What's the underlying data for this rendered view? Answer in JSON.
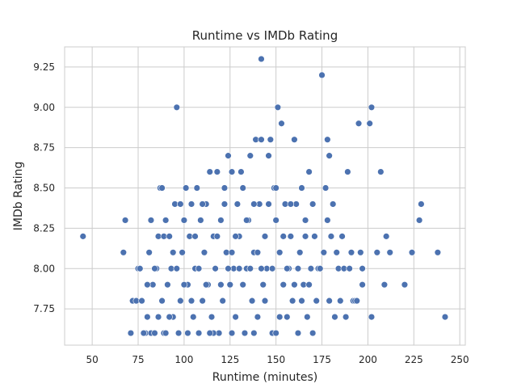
{
  "chart_data": {
    "type": "scatter",
    "title": "Runtime vs IMDb Rating",
    "xlabel": "Runtime (minutes)",
    "ylabel": "IMDb Rating",
    "xlim": [
      35,
      253
    ],
    "ylim": [
      7.525,
      9.375
    ],
    "xticks": [
      50,
      75,
      100,
      125,
      150,
      175,
      200,
      225,
      250
    ],
    "xtick_labels": [
      "50",
      "75",
      "100",
      "125",
      "150",
      "175",
      "200",
      "225",
      "250"
    ],
    "yticks": [
      7.75,
      8.0,
      8.25,
      8.5,
      8.75,
      9.0,
      9.25
    ],
    "ytick_labels": [
      "7.75",
      "8.00",
      "8.25",
      "8.50",
      "8.75",
      "9.00",
      "9.25"
    ],
    "grid": true,
    "color": "#4c72b0",
    "points": [
      [
        45,
        8.2
      ],
      [
        67,
        8.1
      ],
      [
        68,
        8.3
      ],
      [
        71,
        7.6
      ],
      [
        72,
        7.8
      ],
      [
        74,
        7.8
      ],
      [
        75,
        8.0
      ],
      [
        76,
        8.0
      ],
      [
        77,
        7.8
      ],
      [
        79,
        7.6
      ],
      [
        80,
        7.7
      ],
      [
        81,
        8.1
      ],
      [
        82,
        8.3
      ],
      [
        82,
        7.6
      ],
      [
        83,
        7.9
      ],
      [
        84,
        7.6
      ],
      [
        85,
        8.0
      ],
      [
        86,
        7.7
      ],
      [
        86,
        8.2
      ],
      [
        87,
        8.5
      ],
      [
        88,
        8.5
      ],
      [
        89,
        8.2
      ],
      [
        89,
        7.6
      ],
      [
        90,
        8.3
      ],
      [
        91,
        7.9
      ],
      [
        92,
        8.2
      ],
      [
        93,
        8.0
      ],
      [
        94,
        7.7
      ],
      [
        95,
        8.4
      ],
      [
        96,
        9.0
      ],
      [
        97,
        7.6
      ],
      [
        98,
        7.8
      ],
      [
        99,
        8.1
      ],
      [
        100,
        8.3
      ],
      [
        101,
        8.5
      ],
      [
        102,
        7.9
      ],
      [
        103,
        8.2
      ],
      [
        104,
        8.4
      ],
      [
        105,
        7.7
      ],
      [
        106,
        8.0
      ],
      [
        107,
        8.5
      ],
      [
        108,
        7.6
      ],
      [
        109,
        8.3
      ],
      [
        110,
        7.8
      ],
      [
        111,
        8.1
      ],
      [
        112,
        8.4
      ],
      [
        113,
        7.9
      ],
      [
        114,
        8.6
      ],
      [
        115,
        7.7
      ],
      [
        116,
        8.2
      ],
      [
        117,
        8.0
      ],
      [
        118,
        8.6
      ],
      [
        119,
        7.6
      ],
      [
        120,
        8.3
      ],
      [
        121,
        7.8
      ],
      [
        122,
        8.5
      ],
      [
        123,
        8.1
      ],
      [
        124,
        8.7
      ],
      [
        125,
        7.9
      ],
      [
        126,
        8.6
      ],
      [
        127,
        8.0
      ],
      [
        128,
        7.7
      ],
      [
        129,
        8.4
      ],
      [
        130,
        8.2
      ],
      [
        131,
        8.6
      ],
      [
        132,
        8.5
      ],
      [
        133,
        7.6
      ],
      [
        134,
        8.0
      ],
      [
        135,
        8.3
      ],
      [
        136,
        8.7
      ],
      [
        137,
        7.8
      ],
      [
        138,
        8.1
      ],
      [
        139,
        8.8
      ],
      [
        140,
        7.7
      ],
      [
        141,
        8.4
      ],
      [
        142,
        9.3
      ],
      [
        142,
        8.8
      ],
      [
        143,
        7.9
      ],
      [
        144,
        8.2
      ],
      [
        145,
        8.0
      ],
      [
        146,
        8.7
      ],
      [
        147,
        8.8
      ],
      [
        148,
        7.6
      ],
      [
        149,
        8.5
      ],
      [
        150,
        8.3
      ],
      [
        151,
        9.0
      ],
      [
        152,
        8.1
      ],
      [
        153,
        8.9
      ],
      [
        154,
        7.9
      ],
      [
        155,
        8.4
      ],
      [
        156,
        7.7
      ],
      [
        157,
        8.0
      ],
      [
        158,
        8.2
      ],
      [
        159,
        7.8
      ],
      [
        160,
        8.8
      ],
      [
        161,
        8.4
      ],
      [
        162,
        7.6
      ],
      [
        163,
        8.1
      ],
      [
        164,
        8.5
      ],
      [
        165,
        7.9
      ],
      [
        166,
        8.3
      ],
      [
        167,
        7.7
      ],
      [
        168,
        8.6
      ],
      [
        169,
        8.0
      ],
      [
        170,
        8.4
      ],
      [
        170,
        7.6
      ],
      [
        171,
        8.2
      ],
      [
        172,
        7.8
      ],
      [
        173,
        8.0
      ],
      [
        175,
        9.2
      ],
      [
        176,
        8.1
      ],
      [
        177,
        8.5
      ],
      [
        178,
        8.8
      ],
      [
        178,
        8.3
      ],
      [
        179,
        8.7
      ],
      [
        179,
        7.8
      ],
      [
        180,
        8.2
      ],
      [
        181,
        8.4
      ],
      [
        182,
        7.7
      ],
      [
        183,
        8.1
      ],
      [
        184,
        8.0
      ],
      [
        185,
        7.8
      ],
      [
        186,
        8.2
      ],
      [
        187,
        8.0
      ],
      [
        188,
        7.7
      ],
      [
        189,
        8.6
      ],
      [
        190,
        8.0
      ],
      [
        191,
        8.1
      ],
      [
        192,
        7.8
      ],
      [
        193,
        7.8
      ],
      [
        194,
        7.8
      ],
      [
        195,
        8.9
      ],
      [
        196,
        8.1
      ],
      [
        197,
        7.9
      ],
      [
        197,
        8.0
      ],
      [
        201,
        8.9
      ],
      [
        202,
        9.0
      ],
      [
        202,
        7.7
      ],
      [
        205,
        8.1
      ],
      [
        207,
        8.6
      ],
      [
        209,
        7.9
      ],
      [
        210,
        8.2
      ],
      [
        212,
        8.1
      ],
      [
        220,
        7.9
      ],
      [
        224,
        8.1
      ],
      [
        228,
        8.3
      ],
      [
        229,
        8.4
      ],
      [
        238,
        8.1
      ],
      [
        242,
        7.7
      ],
      [
        80,
        7.9
      ],
      [
        84,
        8.0
      ],
      [
        88,
        7.8
      ],
      [
        92,
        7.7
      ],
      [
        96,
        8.0
      ],
      [
        100,
        7.9
      ],
      [
        104,
        7.8
      ],
      [
        108,
        8.0
      ],
      [
        112,
        7.9
      ],
      [
        116,
        7.6
      ],
      [
        120,
        7.9
      ],
      [
        124,
        8.0
      ],
      [
        128,
        8.2
      ],
      [
        132,
        7.9
      ],
      [
        136,
        8.0
      ],
      [
        140,
        8.1
      ],
      [
        144,
        7.8
      ],
      [
        148,
        8.0
      ],
      [
        152,
        7.7
      ],
      [
        156,
        8.0
      ],
      [
        160,
        7.9
      ],
      [
        164,
        7.8
      ],
      [
        168,
        7.9
      ],
      [
        78,
        7.6
      ],
      [
        90,
        7.6
      ],
      [
        102,
        7.6
      ],
      [
        114,
        7.6
      ],
      [
        126,
        7.6
      ],
      [
        138,
        7.6
      ],
      [
        150,
        7.6
      ],
      [
        98,
        8.4
      ],
      [
        110,
        8.4
      ],
      [
        122,
        8.4
      ],
      [
        134,
        8.3
      ],
      [
        146,
        8.4
      ],
      [
        158,
        8.4
      ],
      [
        106,
        8.2
      ],
      [
        118,
        8.2
      ],
      [
        130,
        8.0
      ],
      [
        142,
        8.0
      ],
      [
        154,
        8.2
      ],
      [
        166,
        8.2
      ],
      [
        94,
        8.1
      ],
      [
        126,
        8.1
      ],
      [
        138,
        8.4
      ],
      [
        150,
        8.5
      ],
      [
        162,
        8.0
      ],
      [
        174,
        8.0
      ]
    ]
  }
}
